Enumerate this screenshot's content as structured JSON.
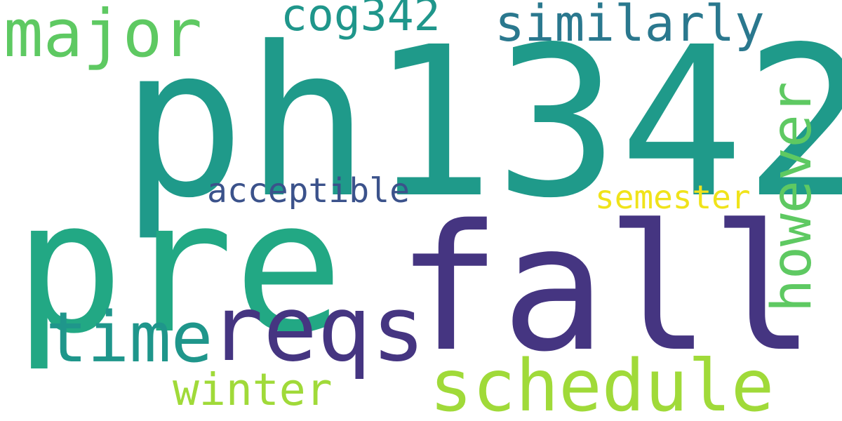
{
  "words": [
    {
      "id": "ph1342",
      "text": "ph1342",
      "color": "#1f9a8a"
    },
    {
      "id": "pre",
      "text": "pre",
      "color": "#22a884"
    },
    {
      "id": "fall",
      "text": "fall",
      "color": "#453581"
    },
    {
      "id": "however",
      "text": "however",
      "color": "#5ec962"
    },
    {
      "id": "major",
      "text": "major",
      "color": "#5ec962"
    },
    {
      "id": "similarly",
      "text": "similarly",
      "color": "#2a788e"
    },
    {
      "id": "cog342",
      "text": "cog342",
      "color": "#1f968b"
    },
    {
      "id": "acceptible",
      "text": "acceptible",
      "color": "#3b528b"
    },
    {
      "id": "semester",
      "text": "semester",
      "color": "#f0e31a"
    },
    {
      "id": "time",
      "text": "time",
      "color": "#1f968b"
    },
    {
      "id": "reqs",
      "text": "reqs",
      "color": "#453581"
    },
    {
      "id": "schedule",
      "text": "schedule",
      "color": "#a0da39"
    },
    {
      "id": "winter",
      "text": "winter",
      "color": "#a0da39"
    }
  ]
}
